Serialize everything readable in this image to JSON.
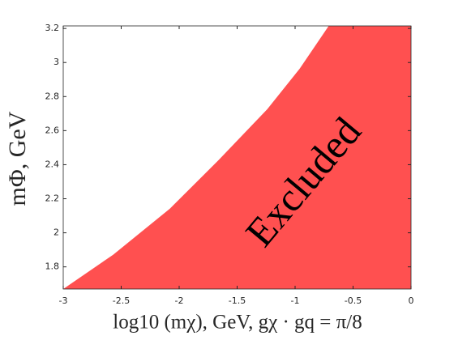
{
  "chart_data": {
    "type": "area",
    "x_label": "log10 (mχ), GeV, gχ · gq = π/8",
    "y_label": "mΦ, GeV",
    "annotation": "Excluded",
    "x": [
      -3,
      -2.57,
      -2.08,
      -1.66,
      -1.24,
      -0.96,
      -0.71
    ],
    "series": [
      {
        "color": "#ff5050",
        "values": [
          1.67,
          1.871,
          2.142,
          2.427,
          2.726,
          2.964,
          3.215
        ]
      }
    ],
    "xlim": [
      -3,
      0
    ],
    "ylim": [
      1.67,
      3.215
    ],
    "xticks": [
      -3,
      -2.5,
      -2,
      -1.5,
      -1,
      -0.5,
      0
    ],
    "yticks": [
      1.8,
      2,
      2.2,
      2.4,
      2.6,
      2.8,
      3,
      3.2
    ]
  }
}
